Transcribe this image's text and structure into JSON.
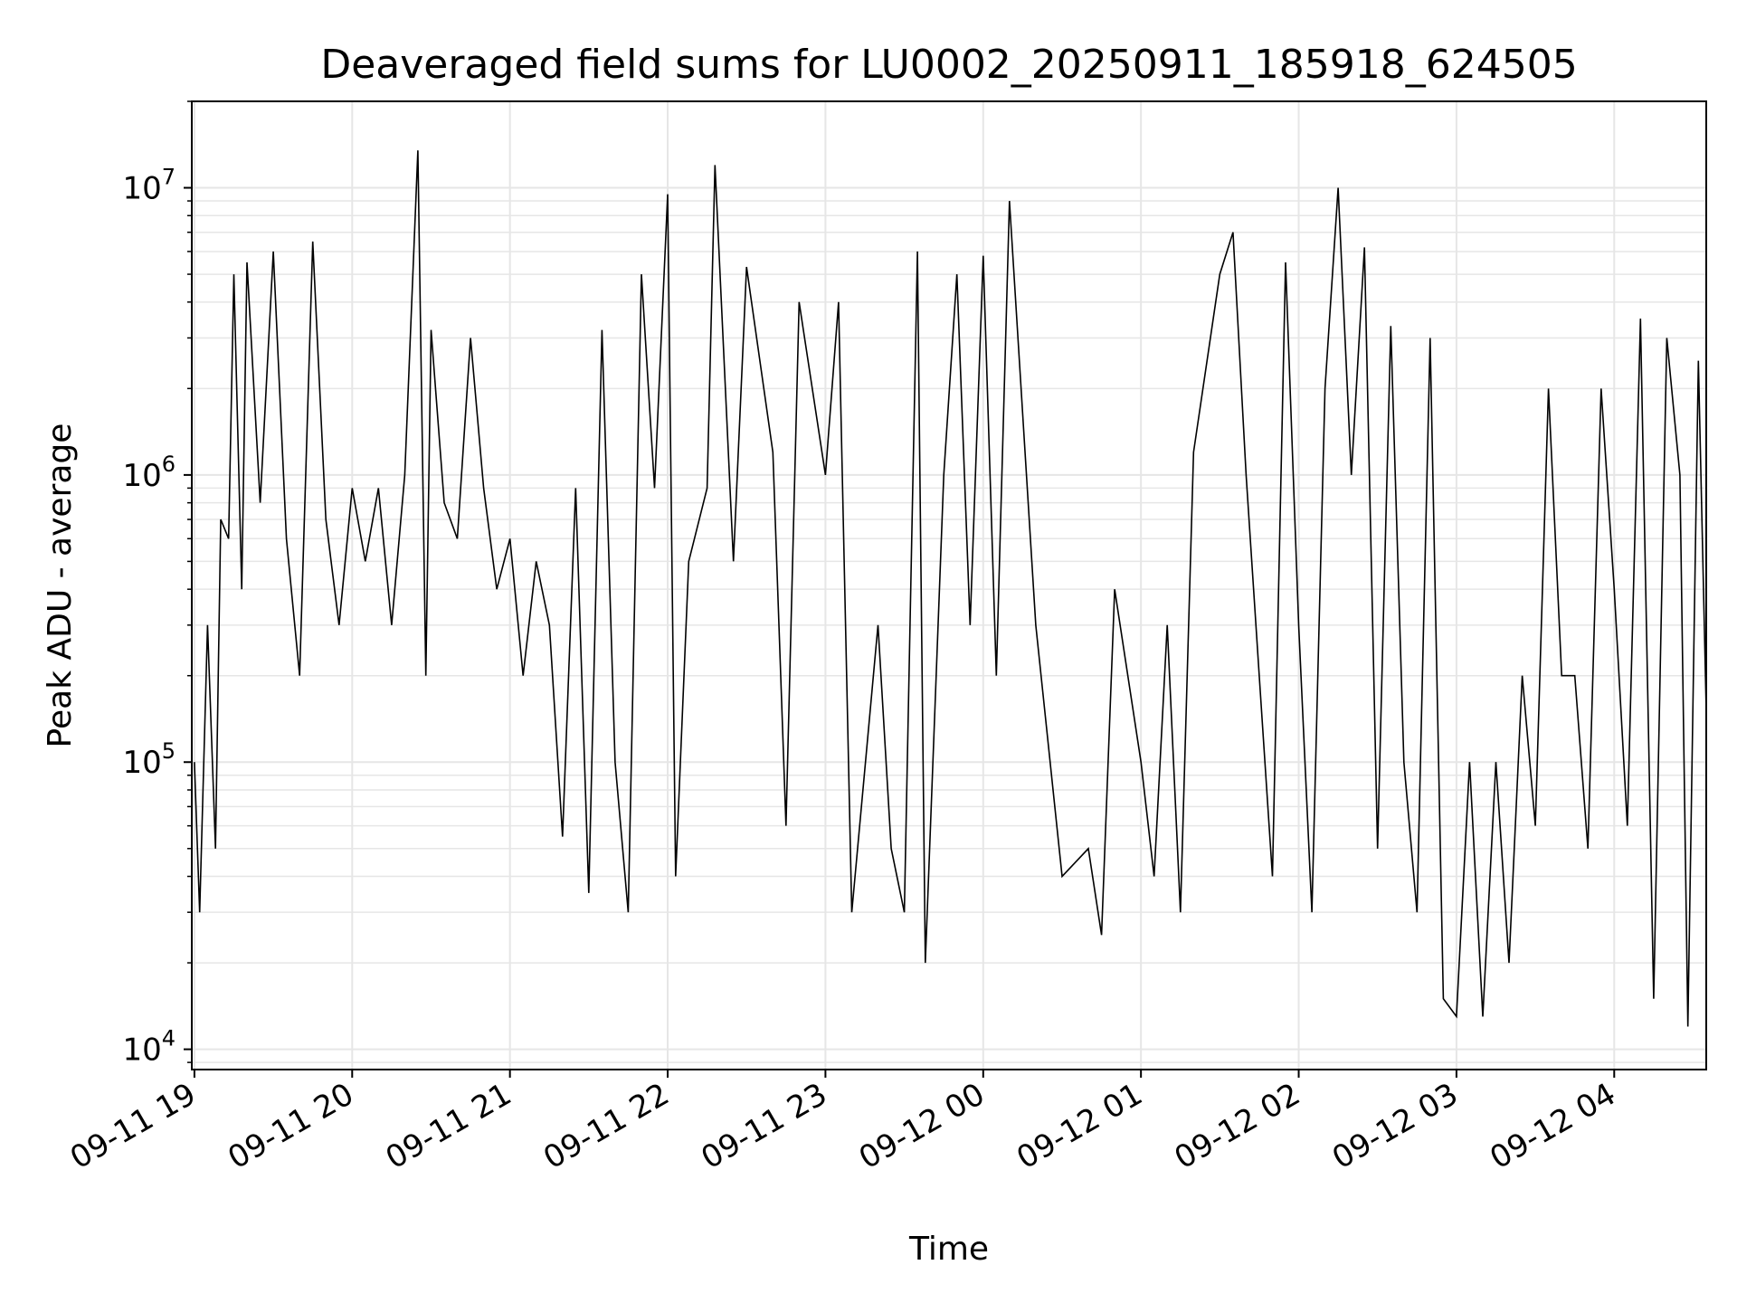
{
  "chart_data": {
    "type": "line",
    "title": "Deaveraged field sums for LU0002_20250911_185918_624505",
    "xlabel": "Time",
    "ylabel": "Peak ADU - average",
    "yscale": "log",
    "grid": true,
    "line_color": "#000000",
    "grid_color": "#e6e6e6",
    "xlim": [
      "2025-09-11 18:59",
      "2025-09-12 04:35"
    ],
    "ylim": [
      8500,
      20000000
    ],
    "x_ticks": [
      {
        "value": "2025-09-11 19:00",
        "label": "09-11 19"
      },
      {
        "value": "2025-09-11 20:00",
        "label": "09-11 20"
      },
      {
        "value": "2025-09-11 21:00",
        "label": "09-11 21"
      },
      {
        "value": "2025-09-11 22:00",
        "label": "09-11 22"
      },
      {
        "value": "2025-09-11 23:00",
        "label": "09-11 23"
      },
      {
        "value": "2025-09-12 00:00",
        "label": "09-12 00"
      },
      {
        "value": "2025-09-12 01:00",
        "label": "09-12 01"
      },
      {
        "value": "2025-09-12 02:00",
        "label": "09-12 02"
      },
      {
        "value": "2025-09-12 03:00",
        "label": "09-12 03"
      },
      {
        "value": "2025-09-12 04:00",
        "label": "09-12 04"
      }
    ],
    "y_ticks": [
      {
        "value": 10000,
        "base": "10",
        "exp": "4"
      },
      {
        "value": 100000,
        "base": "10",
        "exp": "5"
      },
      {
        "value": 1000000,
        "base": "10",
        "exp": "6"
      },
      {
        "value": 10000000,
        "base": "10",
        "exp": "7"
      }
    ],
    "series": [
      {
        "values": [
          [
            "2025-09-11 19:00",
            100000
          ],
          [
            "2025-09-11 19:02",
            30000
          ],
          [
            "2025-09-11 19:05",
            300000
          ],
          [
            "2025-09-11 19:08",
            50000
          ],
          [
            "2025-09-11 19:10",
            700000
          ],
          [
            "2025-09-11 19:13",
            600000
          ],
          [
            "2025-09-11 19:15",
            5000000
          ],
          [
            "2025-09-11 19:18",
            400000
          ],
          [
            "2025-09-11 19:20",
            5500000
          ],
          [
            "2025-09-11 19:25",
            800000
          ],
          [
            "2025-09-11 19:30",
            6000000
          ],
          [
            "2025-09-11 19:35",
            600000
          ],
          [
            "2025-09-11 19:40",
            200000
          ],
          [
            "2025-09-11 19:45",
            6500000
          ],
          [
            "2025-09-11 19:50",
            700000
          ],
          [
            "2025-09-11 19:55",
            300000
          ],
          [
            "2025-09-11 20:00",
            900000
          ],
          [
            "2025-09-11 20:05",
            500000
          ],
          [
            "2025-09-11 20:10",
            900000
          ],
          [
            "2025-09-11 20:15",
            300000
          ],
          [
            "2025-09-11 20:20",
            1000000
          ],
          [
            "2025-09-11 20:25",
            13500000
          ],
          [
            "2025-09-11 20:28",
            200000
          ],
          [
            "2025-09-11 20:30",
            3200000
          ],
          [
            "2025-09-11 20:35",
            800000
          ],
          [
            "2025-09-11 20:40",
            600000
          ],
          [
            "2025-09-11 20:45",
            3000000
          ],
          [
            "2025-09-11 20:50",
            900000
          ],
          [
            "2025-09-11 20:55",
            400000
          ],
          [
            "2025-09-11 21:00",
            600000
          ],
          [
            "2025-09-11 21:05",
            200000
          ],
          [
            "2025-09-11 21:10",
            500000
          ],
          [
            "2025-09-11 21:15",
            300000
          ],
          [
            "2025-09-11 21:20",
            55000
          ],
          [
            "2025-09-11 21:25",
            900000
          ],
          [
            "2025-09-11 21:30",
            35000
          ],
          [
            "2025-09-11 21:35",
            3200000
          ],
          [
            "2025-09-11 21:40",
            100000
          ],
          [
            "2025-09-11 21:45",
            30000
          ],
          [
            "2025-09-11 21:50",
            5000000
          ],
          [
            "2025-09-11 21:55",
            900000
          ],
          [
            "2025-09-11 22:00",
            9500000
          ],
          [
            "2025-09-11 22:03",
            40000
          ],
          [
            "2025-09-11 22:08",
            500000
          ],
          [
            "2025-09-11 22:15",
            900000
          ],
          [
            "2025-09-11 22:18",
            12000000
          ],
          [
            "2025-09-11 22:25",
            500000
          ],
          [
            "2025-09-11 22:30",
            5300000
          ],
          [
            "2025-09-11 22:40",
            1200000
          ],
          [
            "2025-09-11 22:45",
            60000
          ],
          [
            "2025-09-11 22:50",
            4000000
          ],
          [
            "2025-09-11 23:00",
            1000000
          ],
          [
            "2025-09-11 23:05",
            4000000
          ],
          [
            "2025-09-11 23:10",
            30000
          ],
          [
            "2025-09-11 23:20",
            300000
          ],
          [
            "2025-09-11 23:25",
            50000
          ],
          [
            "2025-09-11 23:30",
            30000
          ],
          [
            "2025-09-11 23:35",
            6000000
          ],
          [
            "2025-09-11 23:38",
            20000
          ],
          [
            "2025-09-11 23:45",
            1000000
          ],
          [
            "2025-09-11 23:50",
            5000000
          ],
          [
            "2025-09-11 23:55",
            300000
          ],
          [
            "2025-09-12 00:00",
            5800000
          ],
          [
            "2025-09-12 00:05",
            200000
          ],
          [
            "2025-09-12 00:10",
            9000000
          ],
          [
            "2025-09-12 00:20",
            300000
          ],
          [
            "2025-09-12 00:30",
            40000
          ],
          [
            "2025-09-12 00:40",
            50000
          ],
          [
            "2025-09-12 00:45",
            25000
          ],
          [
            "2025-09-12 00:50",
            400000
          ],
          [
            "2025-09-12 01:00",
            100000
          ],
          [
            "2025-09-12 01:05",
            40000
          ],
          [
            "2025-09-12 01:10",
            300000
          ],
          [
            "2025-09-12 01:15",
            30000
          ],
          [
            "2025-09-12 01:20",
            1200000
          ],
          [
            "2025-09-12 01:30",
            5000000
          ],
          [
            "2025-09-12 01:35",
            7000000
          ],
          [
            "2025-09-12 01:40",
            1000000
          ],
          [
            "2025-09-12 01:45",
            200000
          ],
          [
            "2025-09-12 01:50",
            40000
          ],
          [
            "2025-09-12 01:55",
            5500000
          ],
          [
            "2025-09-12 02:00",
            300000
          ],
          [
            "2025-09-12 02:05",
            30000
          ],
          [
            "2025-09-12 02:10",
            2000000
          ],
          [
            "2025-09-12 02:15",
            10000000
          ],
          [
            "2025-09-12 02:20",
            1000000
          ],
          [
            "2025-09-12 02:25",
            6200000
          ],
          [
            "2025-09-12 02:30",
            50000
          ],
          [
            "2025-09-12 02:35",
            3300000
          ],
          [
            "2025-09-12 02:40",
            100000
          ],
          [
            "2025-09-12 02:45",
            30000
          ],
          [
            "2025-09-12 02:50",
            3000000
          ],
          [
            "2025-09-12 02:55",
            15000
          ],
          [
            "2025-09-12 03:00",
            13000
          ],
          [
            "2025-09-12 03:05",
            100000
          ],
          [
            "2025-09-12 03:10",
            13000
          ],
          [
            "2025-09-12 03:15",
            100000
          ],
          [
            "2025-09-12 03:20",
            20000
          ],
          [
            "2025-09-12 03:25",
            200000
          ],
          [
            "2025-09-12 03:30",
            60000
          ],
          [
            "2025-09-12 03:35",
            2000000
          ],
          [
            "2025-09-12 03:40",
            200000
          ],
          [
            "2025-09-12 03:45",
            200000
          ],
          [
            "2025-09-12 03:50",
            50000
          ],
          [
            "2025-09-12 03:55",
            2000000
          ],
          [
            "2025-09-12 04:00",
            400000
          ],
          [
            "2025-09-12 04:05",
            60000
          ],
          [
            "2025-09-12 04:10",
            3500000
          ],
          [
            "2025-09-12 04:15",
            15000
          ],
          [
            "2025-09-12 04:20",
            3000000
          ],
          [
            "2025-09-12 04:25",
            1000000
          ],
          [
            "2025-09-12 04:28",
            12000
          ],
          [
            "2025-09-12 04:32",
            2500000
          ],
          [
            "2025-09-12 04:35",
            150000
          ]
        ]
      }
    ]
  }
}
